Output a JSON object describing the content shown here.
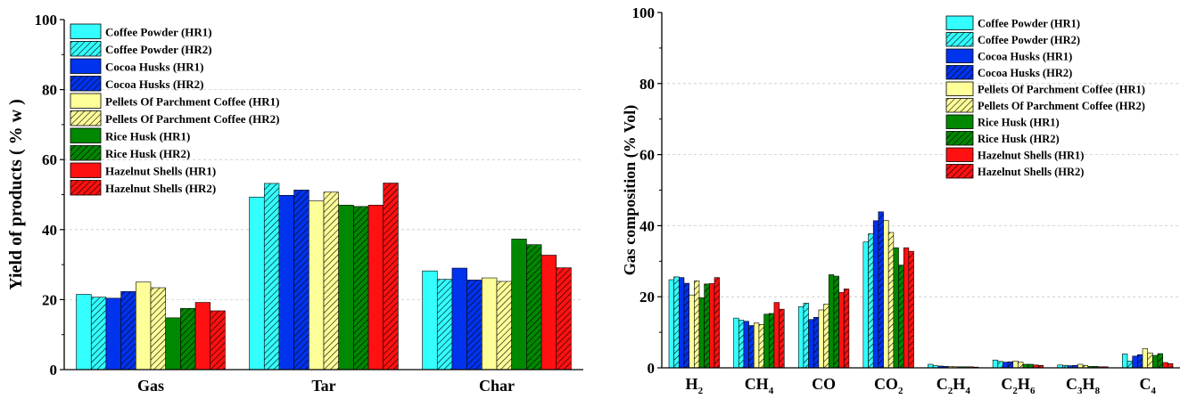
{
  "series_names": [
    "Coffee Powder (HR1)",
    "Coffee Powder (HR2)",
    "Cocoa Husks (HR1)",
    "Cocoa Husks (HR2)",
    "Pellets Of Parchment Coffee (HR1)",
    "Pellets Of Parchment Coffee (HR2)",
    "Rice Husk (HR1)",
    "Rice Husk (HR2)",
    "Hazelnut Shells (HR1)",
    "Hazelnut Shells (HR2)"
  ],
  "series_style": {
    "colors": [
      "#33ffff",
      "#33ffff",
      "#0033ee",
      "#0033ee",
      "#ffff99",
      "#ffff99",
      "#008800",
      "#008800",
      "#ff1111",
      "#ff1111"
    ],
    "hatched": [
      false,
      true,
      false,
      true,
      false,
      true,
      false,
      true,
      false,
      true
    ]
  },
  "chart_data": [
    {
      "type": "bar",
      "ylabel": "Yield of products ( % w )",
      "categories": [
        "Gas",
        "Tar",
        "Char"
      ],
      "ylim": [
        0,
        100
      ],
      "yticks": [
        0,
        20,
        40,
        60,
        80,
        100
      ],
      "legend": "top-left",
      "series": [
        {
          "name": "Coffee Powder (HR1)",
          "values": [
            21.5,
            49.3,
            28.2
          ]
        },
        {
          "name": "Coffee Powder (HR2)",
          "values": [
            20.7,
            53.2,
            25.8
          ]
        },
        {
          "name": "Cocoa Husks (HR1)",
          "values": [
            20.4,
            49.8,
            29.0
          ]
        },
        {
          "name": "Cocoa Husks (HR2)",
          "values": [
            22.3,
            51.3,
            25.6
          ]
        },
        {
          "name": "Pellets Of Parchment Coffee (HR1)",
          "values": [
            25.0,
            48.2,
            26.2
          ]
        },
        {
          "name": "Pellets Of Parchment Coffee (HR2)",
          "values": [
            23.4,
            50.7,
            25.2
          ]
        },
        {
          "name": "Rice Husk (HR1)",
          "values": [
            14.8,
            47.0,
            37.3
          ]
        },
        {
          "name": "Rice Husk (HR2)",
          "values": [
            17.5,
            46.6,
            35.7
          ]
        },
        {
          "name": "Hazelnut Shells (HR1)",
          "values": [
            19.2,
            47.0,
            32.7
          ]
        },
        {
          "name": "Hazelnut Shells (HR2)",
          "values": [
            16.8,
            53.3,
            29.1
          ]
        }
      ]
    },
    {
      "type": "bar",
      "ylabel": "Gas composition (% Vol)",
      "categories": [
        "H2",
        "CH4",
        "CO",
        "CO2",
        "C2H4",
        "C2H6",
        "C3H8",
        "C4"
      ],
      "category_labels": [
        {
          "base": "H",
          "sub": "2"
        },
        {
          "base": "CH",
          "sub": "4"
        },
        {
          "base": "CO",
          "sub": ""
        },
        {
          "base": "CO",
          "sub": "2"
        },
        {
          "parts": [
            "C",
            "2",
            "H",
            "4"
          ]
        },
        {
          "parts": [
            "C",
            "2",
            "H",
            "6"
          ]
        },
        {
          "parts": [
            "C",
            "3",
            "H",
            "8"
          ]
        },
        {
          "base": "C",
          "sub": "4"
        }
      ],
      "ylim": [
        0,
        100
      ],
      "yticks": [
        0,
        20,
        40,
        60,
        80,
        100
      ],
      "legend": "top-right",
      "series": [
        {
          "name": "Coffee Powder (HR1)",
          "values": [
            24.8,
            14.0,
            17.2,
            35.4,
            1.0,
            2.2,
            0.8,
            3.9
          ]
        },
        {
          "name": "Coffee Powder (HR2)",
          "values": [
            25.6,
            13.4,
            18.2,
            37.7,
            0.6,
            1.8,
            0.7,
            1.9
          ]
        },
        {
          "name": "Cocoa Husks (HR1)",
          "values": [
            25.4,
            13.1,
            13.6,
            41.4,
            0.5,
            1.6,
            0.6,
            3.3
          ]
        },
        {
          "name": "Cocoa Husks (HR2)",
          "values": [
            23.8,
            11.9,
            14.2,
            43.9,
            0.4,
            1.7,
            0.7,
            3.7
          ]
        },
        {
          "name": "Pellets Of Parchment Coffee (HR1)",
          "values": [
            20.5,
            12.6,
            16.3,
            41.5,
            0.4,
            1.9,
            1.0,
            5.4
          ]
        },
        {
          "name": "Pellets Of Parchment Coffee (HR2)",
          "values": [
            24.5,
            12.2,
            17.9,
            38.1,
            0.3,
            1.6,
            0.7,
            4.2
          ]
        },
        {
          "name": "Rice Husk (HR1)",
          "values": [
            19.7,
            15.1,
            26.2,
            33.8,
            0.3,
            1.0,
            0.4,
            3.5
          ]
        },
        {
          "name": "Rice Husk (HR2)",
          "values": [
            23.6,
            15.3,
            25.8,
            28.9,
            0.3,
            1.0,
            0.4,
            4.0
          ]
        },
        {
          "name": "Hazelnut Shells (HR1)",
          "values": [
            23.7,
            18.4,
            21.2,
            33.8,
            0.3,
            0.8,
            0.3,
            1.5
          ]
        },
        {
          "name": "Hazelnut Shells (HR2)",
          "values": [
            25.4,
            16.5,
            22.2,
            32.8,
            0.2,
            0.7,
            0.3,
            1.2
          ]
        }
      ]
    }
  ]
}
